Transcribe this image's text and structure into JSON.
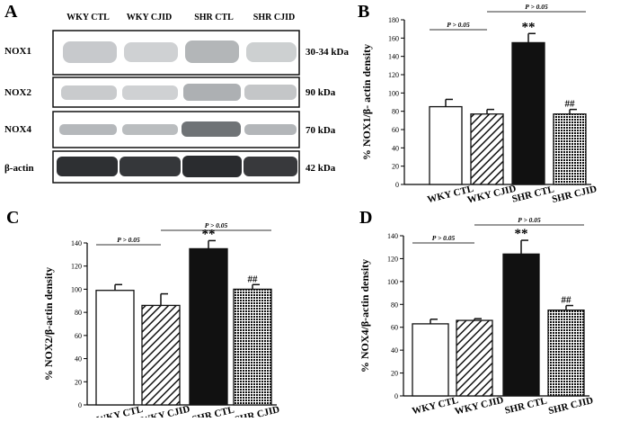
{
  "figure": {
    "panel_a": {
      "letter": "A",
      "lanes": [
        "WKY CTL",
        "WKY CJID",
        "SHR CTL",
        "SHR CJID"
      ],
      "rows": [
        {
          "protein": "NOX1",
          "size": "30-34 kDa"
        },
        {
          "protein": "NOX2",
          "size": "90 kDa"
        },
        {
          "protein": "NOX4",
          "size": "70 kDa"
        },
        {
          "protein": "β-actin",
          "size": "42 kDa"
        }
      ]
    },
    "colors": {
      "wky_ctl_fill": "#ffffff",
      "wky_cjid_pattern": "diagonal-hatch",
      "shr_ctl_fill": "#111111",
      "shr_cjid_pattern": "dotted",
      "axis": "#000000"
    }
  },
  "chart_data": [
    {
      "panel": "B",
      "type": "bar",
      "categories": [
        "WKY CTL",
        "WKY CJID",
        "SHR CTL",
        "SHR CJID"
      ],
      "values": [
        85,
        77,
        155,
        77
      ],
      "errors": [
        8,
        5,
        10,
        5
      ],
      "annotations": [
        "",
        "",
        "**",
        "##"
      ],
      "ylabel": "% NOX1/β- actin density",
      "ylim": [
        0,
        180
      ],
      "yticks": [
        0,
        20,
        40,
        60,
        80,
        100,
        120,
        140,
        160,
        180
      ],
      "brackets": [
        {
          "label": "P > 0.05",
          "from": 0,
          "to": 1
        },
        {
          "label": "P > 0.05",
          "from": 1,
          "to": 3
        }
      ]
    },
    {
      "panel": "C",
      "type": "bar",
      "categories": [
        "WKY CTL",
        "WKY CJID",
        "SHR CTL",
        "SHR CJID"
      ],
      "values": [
        99,
        86,
        135,
        100
      ],
      "errors": [
        5,
        10,
        7,
        4
      ],
      "annotations": [
        "",
        "",
        "**",
        "##"
      ],
      "ylabel": "% NOX2/β-actin density",
      "ylim": [
        0,
        140
      ],
      "yticks": [
        0,
        20,
        40,
        60,
        80,
        100,
        120,
        140
      ],
      "brackets": [
        {
          "label": "P > 0.05",
          "from": 0,
          "to": 1
        },
        {
          "label": "P > 0.05",
          "from": 1,
          "to": 3
        }
      ]
    },
    {
      "panel": "D",
      "type": "bar",
      "categories": [
        "WKY CTL",
        "WKY CJID",
        "SHR CTL",
        "SHR CJID"
      ],
      "values": [
        63,
        66,
        124,
        75
      ],
      "errors": [
        4,
        1.5,
        12,
        4
      ],
      "annotations": [
        "",
        "",
        "**",
        "##"
      ],
      "ylabel": "% NOX4/β-actin density",
      "ylim": [
        0,
        140
      ],
      "yticks": [
        0,
        20,
        40,
        60,
        80,
        100,
        120,
        140
      ],
      "brackets": [
        {
          "label": "P > 0.05",
          "from": 0,
          "to": 1
        },
        {
          "label": "P > 0.05",
          "from": 1,
          "to": 3
        }
      ]
    }
  ]
}
